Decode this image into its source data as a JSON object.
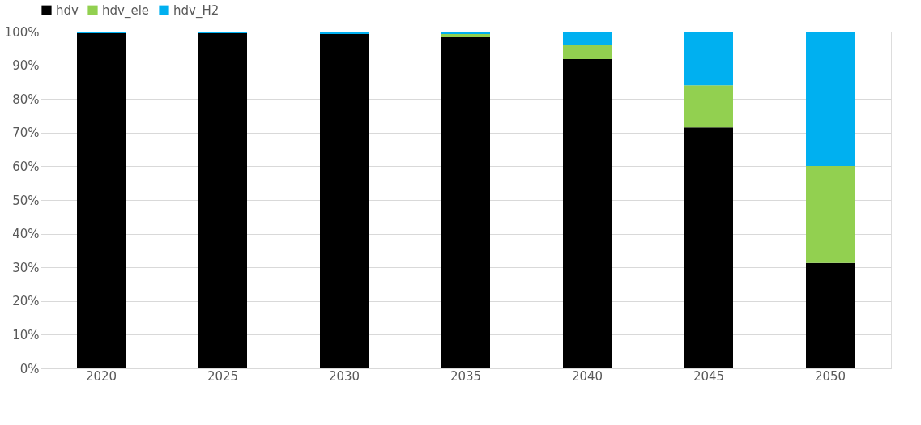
{
  "chart_data": {
    "type": "bar",
    "stacked": true,
    "categories": [
      "2020",
      "2025",
      "2030",
      "2035",
      "2040",
      "2045",
      "2050"
    ],
    "series": [
      {
        "name": "hdv",
        "color": "#000000",
        "values": [
          99.5,
          99.5,
          99.3,
          98.3,
          91.8,
          71.6,
          31.3
        ]
      },
      {
        "name": "hdv_ele",
        "color": "#92d050",
        "values": [
          null,
          null,
          null,
          1.0,
          4.1,
          12.5,
          28.8
        ]
      },
      {
        "name": "hdv_H2",
        "color": "#00b0f0",
        "values": [
          0.5,
          0.5,
          0.7,
          0.7,
          4.1,
          15.9,
          39.9
        ]
      }
    ],
    "ylim": [
      0,
      100
    ],
    "yticks": [
      {
        "value": 0,
        "label": "0%"
      },
      {
        "value": 10,
        "label": "10%"
      },
      {
        "value": 20,
        "label": "20%"
      },
      {
        "value": 30,
        "label": "30%"
      },
      {
        "value": 40,
        "label": "40%"
      },
      {
        "value": 50,
        "label": "50%"
      },
      {
        "value": 60,
        "label": "60%"
      },
      {
        "value": 70,
        "label": "70%"
      },
      {
        "value": 80,
        "label": "80%"
      },
      {
        "value": 90,
        "label": "90%"
      },
      {
        "value": 100,
        "label": "100%"
      }
    ],
    "grid": "y",
    "legend": "top"
  }
}
